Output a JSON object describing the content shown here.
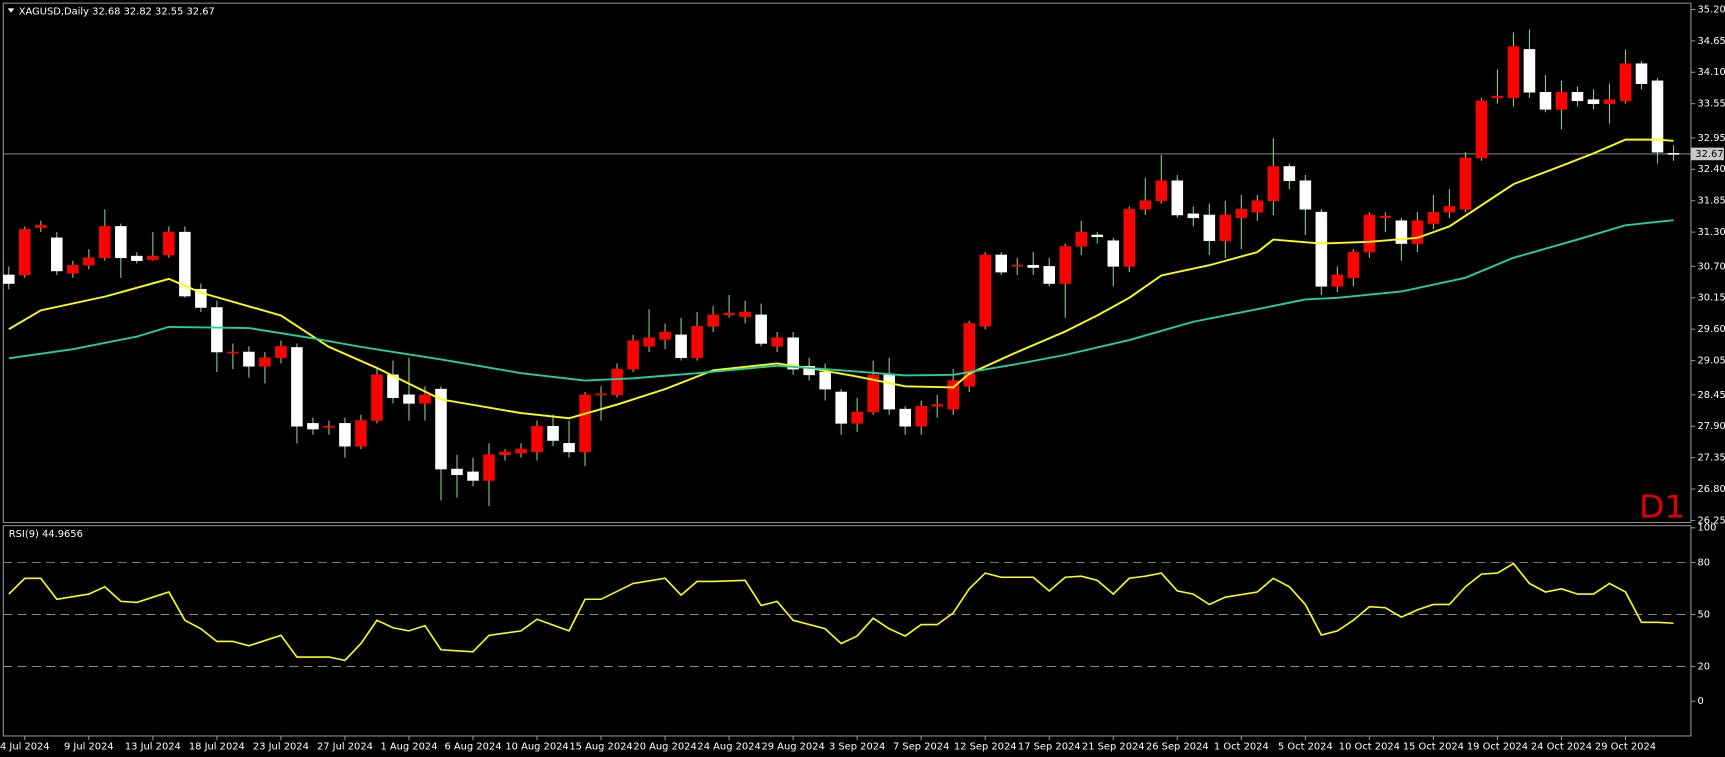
{
  "chart_data": [
    {
      "type": "candlestick",
      "title": "XAGUSD,Daily  32.68 32.82 32.55 32.67",
      "timeframe_label": "D1",
      "categories": [
        null,
        "4 Jul 2024",
        null,
        null,
        null,
        "9 Jul 2024",
        null,
        null,
        null,
        "13 Jul 2024",
        null,
        null,
        null,
        "18 Jul 2024",
        null,
        null,
        null,
        "23 Jul 2024",
        null,
        null,
        null,
        "27 Jul 2024",
        null,
        null,
        null,
        "1 Aug 2024",
        null,
        null,
        null,
        "6 Aug 2024",
        null,
        null,
        null,
        "10 Aug 2024",
        null,
        null,
        null,
        "15 Aug 2024",
        null,
        null,
        null,
        "20 Aug 2024",
        null,
        null,
        null,
        "24 Aug 2024",
        null,
        null,
        null,
        "29 Aug 2024",
        null,
        null,
        null,
        "3 Sep 2024",
        null,
        null,
        null,
        "7 Sep 2024",
        null,
        null,
        null,
        "12 Sep 2024",
        null,
        null,
        null,
        "17 Sep 2024",
        null,
        null,
        null,
        "21 Sep 2024",
        null,
        null,
        null,
        "26 Sep 2024",
        null,
        null,
        null,
        "1 Oct 2024",
        null,
        null,
        null,
        "5 Oct 2024",
        null,
        null,
        null,
        "10 Oct 2024",
        null,
        null,
        null,
        "15 Oct 2024",
        null,
        null,
        null,
        "19 Oct 2024",
        null,
        null,
        null,
        "24 Oct 2024",
        null,
        null,
        null,
        "29 Oct 2024",
        null,
        null,
        null
      ],
      "open": [
        30.55,
        30.55,
        31.38,
        31.2,
        30.58,
        30.72,
        30.85,
        31.4,
        30.88,
        30.82,
        30.9,
        31.3,
        30.3,
        29.98,
        29.18,
        29.2,
        28.95,
        29.1,
        29.28,
        27.95,
        27.88,
        27.95,
        27.55,
        28.0,
        28.8,
        28.45,
        28.3,
        28.55,
        27.15,
        27.1,
        26.95,
        27.4,
        27.43,
        27.45,
        27.9,
        27.6,
        27.45,
        28.45,
        28.45,
        28.9,
        29.3,
        29.42,
        29.5,
        29.1,
        29.65,
        29.85,
        29.82,
        29.85,
        29.3,
        29.45,
        28.95,
        28.85,
        28.5,
        27.95,
        28.15,
        28.8,
        28.2,
        27.9,
        28.25,
        28.2,
        28.6,
        29.65,
        30.9,
        30.7,
        30.72,
        30.7,
        30.4,
        31.05,
        31.25,
        31.15,
        30.7,
        31.7,
        31.85,
        32.2,
        31.62,
        31.6,
        31.15,
        31.55,
        31.65,
        31.85,
        32.45,
        32.2,
        31.65,
        30.35,
        30.5,
        30.95,
        31.55,
        31.5,
        31.1,
        31.45,
        31.65,
        31.7,
        32.6,
        33.65,
        33.65,
        34.5,
        33.75,
        33.45,
        33.75,
        33.62,
        33.55,
        33.6,
        34.25,
        33.95,
        32.68
      ],
      "high": [
        30.7,
        31.4,
        31.5,
        31.3,
        30.8,
        31.0,
        31.7,
        31.45,
        30.95,
        31.3,
        31.4,
        31.4,
        30.4,
        30.1,
        29.35,
        29.3,
        29.2,
        29.4,
        29.35,
        28.05,
        28.0,
        28.05,
        28.1,
        28.9,
        29.05,
        29.1,
        28.6,
        28.6,
        27.4,
        27.35,
        27.6,
        27.5,
        27.6,
        28.0,
        28.1,
        28.0,
        28.5,
        28.6,
        29.0,
        29.5,
        29.95,
        29.7,
        29.8,
        29.9,
        30.0,
        30.2,
        30.1,
        30.05,
        29.55,
        29.55,
        29.1,
        29.0,
        28.55,
        28.4,
        29.05,
        29.1,
        28.25,
        28.35,
        28.45,
        28.9,
        29.75,
        30.95,
        30.95,
        30.85,
        30.95,
        30.85,
        31.1,
        31.5,
        31.3,
        31.2,
        31.75,
        32.25,
        32.65,
        32.3,
        31.75,
        31.8,
        31.85,
        31.95,
        31.95,
        32.95,
        32.5,
        32.3,
        31.7,
        30.7,
        31.0,
        31.65,
        31.65,
        31.55,
        31.65,
        31.95,
        32.05,
        32.7,
        33.65,
        34.15,
        34.8,
        34.85,
        34.05,
        33.95,
        33.85,
        33.8,
        33.9,
        34.5,
        34.3,
        34.0,
        32.82
      ],
      "low": [
        30.3,
        30.5,
        31.3,
        30.55,
        30.5,
        30.65,
        30.8,
        30.5,
        30.75,
        30.8,
        30.85,
        30.15,
        29.9,
        28.85,
        28.9,
        28.75,
        28.65,
        29.0,
        27.6,
        27.75,
        27.75,
        27.35,
        27.5,
        27.95,
        28.3,
        28.0,
        28.0,
        26.6,
        26.65,
        26.85,
        26.5,
        27.3,
        27.35,
        27.3,
        27.55,
        27.35,
        27.2,
        28.0,
        28.4,
        28.85,
        29.2,
        29.25,
        29.05,
        29.05,
        29.55,
        29.8,
        29.7,
        29.3,
        29.2,
        28.8,
        28.7,
        28.35,
        27.75,
        27.8,
        28.1,
        28.1,
        27.75,
        27.75,
        28.05,
        28.1,
        28.5,
        29.6,
        30.55,
        30.55,
        30.55,
        30.35,
        29.8,
        30.9,
        31.1,
        30.35,
        30.6,
        31.6,
        31.8,
        31.55,
        31.4,
        30.9,
        30.85,
        31.0,
        31.5,
        31.6,
        32.05,
        31.25,
        30.2,
        30.25,
        30.35,
        30.85,
        31.3,
        30.8,
        30.95,
        31.35,
        31.55,
        31.65,
        32.55,
        33.55,
        33.5,
        33.65,
        33.4,
        33.1,
        33.5,
        33.45,
        33.2,
        33.55,
        33.8,
        32.5,
        32.55
      ],
      "close": [
        30.4,
        31.35,
        31.42,
        30.62,
        30.72,
        30.85,
        31.4,
        30.85,
        30.8,
        30.88,
        31.3,
        30.18,
        29.98,
        29.2,
        29.2,
        28.95,
        29.1,
        29.3,
        27.9,
        27.85,
        27.9,
        27.55,
        28.0,
        28.8,
        28.4,
        28.3,
        28.45,
        27.15,
        27.05,
        26.95,
        27.4,
        27.45,
        27.5,
        27.9,
        27.65,
        27.45,
        28.45,
        28.47,
        28.9,
        29.4,
        29.45,
        29.55,
        29.1,
        29.65,
        29.85,
        29.88,
        29.9,
        29.35,
        29.45,
        28.9,
        28.8,
        28.55,
        27.95,
        28.15,
        28.8,
        28.2,
        27.9,
        28.25,
        28.28,
        28.7,
        29.7,
        30.9,
        30.6,
        30.72,
        30.68,
        30.4,
        31.05,
        31.3,
        31.22,
        30.7,
        31.7,
        31.85,
        32.2,
        31.6,
        31.55,
        31.15,
        31.6,
        31.7,
        31.85,
        32.45,
        32.2,
        31.7,
        30.35,
        30.55,
        30.95,
        31.6,
        31.58,
        31.1,
        31.5,
        31.65,
        31.75,
        32.6,
        33.6,
        33.68,
        34.55,
        33.75,
        33.45,
        33.75,
        33.6,
        33.55,
        33.62,
        34.25,
        33.9,
        32.7,
        32.67
      ],
      "up_color": "#ff0000",
      "down_color": "#ffffff",
      "wick_color": "#7fcf7f",
      "overlays": [
        {
          "color": "#ffff00",
          "x": [
            0,
            2,
            6,
            10,
            12,
            17,
            20,
            23,
            27,
            32,
            35,
            38,
            41,
            44,
            48,
            50,
            53,
            56,
            59,
            60,
            63,
            66,
            68,
            70,
            72,
            75,
            78,
            79,
            82,
            85,
            88,
            90,
            92,
            94,
            97,
            99,
            101,
            103,
            104
          ],
          "values": [
            29.6,
            29.93,
            30.17,
            30.48,
            30.24,
            29.84,
            29.29,
            28.92,
            28.37,
            28.13,
            28.04,
            28.28,
            28.55,
            28.88,
            29.0,
            28.92,
            28.77,
            28.6,
            28.58,
            28.82,
            29.2,
            29.56,
            29.84,
            30.15,
            30.54,
            30.72,
            30.95,
            31.17,
            31.1,
            31.13,
            31.2,
            31.4,
            31.77,
            32.14,
            32.46,
            32.68,
            32.92,
            32.92,
            32.9
          ]
        },
        {
          "color": "#20d0a0",
          "x": [
            0,
            4,
            8,
            10,
            15,
            19,
            22,
            27,
            32,
            36,
            39,
            43,
            48,
            52,
            56,
            59,
            63,
            66,
            70,
            74,
            78,
            81,
            83,
            87,
            91,
            94,
            98,
            101,
            104
          ],
          "values": [
            29.09,
            29.25,
            29.47,
            29.64,
            29.62,
            29.44,
            29.29,
            29.07,
            28.83,
            28.7,
            28.74,
            28.83,
            28.96,
            28.88,
            28.79,
            28.8,
            28.99,
            29.15,
            29.41,
            29.73,
            29.95,
            30.12,
            30.15,
            30.26,
            30.5,
            30.85,
            31.17,
            31.42,
            31.51
          ]
        }
      ],
      "current_price": 32.67,
      "ylim": [
        26.25,
        35.2
      ],
      "yticks": [
        {
          "value": 35.2,
          "label": "35.20"
        },
        34.65,
        {
          "value": 34.1,
          "label": "34.10"
        },
        33.55,
        32.95,
        {
          "value": 32.4,
          "label": "32.40"
        },
        31.85,
        {
          "value": 31.3,
          "label": "31.30"
        },
        {
          "value": 30.7,
          "label": "30.70"
        },
        30.15,
        {
          "value": 29.6,
          "label": "29.60"
        },
        29.05,
        28.45,
        {
          "value": 27.9,
          "label": "27.90"
        },
        27.35,
        {
          "value": 26.8,
          "label": "26.80"
        },
        26.25
      ]
    },
    {
      "type": "line",
      "title": "RSI(9) 44.9656",
      "color": "#ffff00",
      "x": [
        0,
        1,
        2,
        3,
        5,
        6,
        7,
        8,
        10,
        11,
        12,
        13,
        14,
        15,
        17,
        18,
        20,
        21,
        22,
        23,
        24,
        25,
        26,
        27,
        29,
        30,
        32,
        33,
        35,
        36,
        37,
        39,
        41,
        42,
        43,
        44,
        46,
        47,
        48,
        49,
        51,
        52,
        53,
        54,
        55,
        56,
        57,
        58,
        59,
        60,
        61,
        62,
        64,
        65,
        66,
        67,
        68,
        69,
        70,
        71,
        72,
        73,
        74,
        75,
        76,
        78,
        79,
        80,
        81,
        82,
        83,
        84,
        85,
        86,
        87,
        88,
        89,
        90,
        91,
        92,
        93,
        94,
        95,
        96,
        97,
        98,
        99,
        100,
        101,
        102,
        103,
        104
      ],
      "values": [
        61.8,
        70.9,
        70.9,
        58.8,
        61.8,
        66,
        57.6,
        57,
        63,
        46.7,
        41.8,
        34.5,
        34.5,
        32,
        38,
        25.5,
        25.5,
        23.6,
        33.3,
        46.7,
        42.4,
        40.6,
        43.6,
        29.7,
        28.5,
        38,
        40.6,
        47.3,
        40.6,
        58.8,
        58.8,
        67.9,
        70.9,
        61.2,
        69.1,
        69.1,
        69.7,
        55.2,
        57.6,
        46.7,
        41.8,
        33.3,
        37.6,
        47.9,
        41.8,
        37.6,
        44.2,
        44.2,
        50.9,
        64.8,
        73.9,
        71.5,
        71.5,
        63.6,
        71.5,
        72.1,
        69.7,
        61.8,
        70.9,
        72.1,
        73.9,
        63.6,
        61.8,
        55.8,
        60,
        63,
        70.9,
        66,
        55.8,
        38.2,
        40.6,
        46.7,
        54.5,
        53.9,
        48.5,
        52.7,
        55.8,
        55.8,
        66,
        73.3,
        73.9,
        79.4,
        67.9,
        63,
        64.8,
        61.8,
        61.8,
        67.9,
        63,
        45.5,
        45.5,
        44.97
      ],
      "levels": [
        80,
        50,
        20
      ],
      "ylim": [
        0,
        100
      ],
      "yticks": [
        100,
        80,
        50,
        20,
        0
      ]
    }
  ]
}
